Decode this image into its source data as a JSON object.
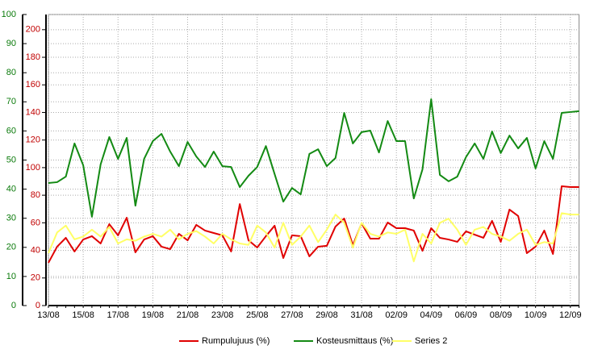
{
  "chart_data": {
    "type": "line",
    "categories": [
      "13/08",
      null,
      null,
      null,
      "15/08",
      null,
      null,
      null,
      "17/08",
      null,
      null,
      null,
      "19/08",
      null,
      null,
      null,
      "21/08",
      null,
      null,
      null,
      "23/08",
      null,
      null,
      null,
      "25/08",
      null,
      null,
      null,
      "27/08",
      null,
      null,
      null,
      "29/08",
      null,
      null,
      null,
      "31/08",
      null,
      null,
      null,
      "02/09",
      null,
      null,
      null,
      "04/09",
      null,
      null,
      null,
      "06/09",
      null,
      null,
      null,
      "08/09",
      null,
      null,
      null,
      "10/09",
      null,
      null,
      null,
      "12/09",
      null
    ],
    "series": [
      {
        "name": "Rumpulujuus (%)",
        "color": "#e00000",
        "axis": "y2",
        "values": [
          31,
          42.7,
          49.1,
          39.2,
          47.9,
          50.3,
          45,
          59,
          50.9,
          63.7,
          38.6,
          47.9,
          50.3,
          42.7,
          40.9,
          52,
          47.3,
          58.5,
          54.4,
          52.6,
          50.9,
          39.2,
          73.6,
          47.3,
          42.1,
          50.3,
          57.9,
          34.5,
          50.9,
          50.3,
          35.7,
          42.7,
          43.3,
          57.3,
          63.1,
          43.8,
          59.6,
          48.5,
          48.5,
          60.2,
          56.1,
          56.1,
          54.4,
          39.7,
          56.1,
          49.1,
          47.9,
          46.2,
          53.8,
          51.4,
          49.1,
          61.4,
          46.2,
          69.6,
          64.9,
          38,
          42.7,
          54.4,
          37.4,
          86.5,
          85.9,
          85.9
        ]
      },
      {
        "name": "Kosteusmittaus (%)",
        "color": "#138a13",
        "values": [
          42.1,
          42.4,
          44.3,
          55.7,
          48.2,
          30.5,
          48.5,
          57.9,
          50.4,
          57.6,
          34.3,
          50.4,
          56.5,
          59,
          52.9,
          47.9,
          56.2,
          51.2,
          47.6,
          52.9,
          47.9,
          47.6,
          40.7,
          44.6,
          47.6,
          54.8,
          45.2,
          35.7,
          40.4,
          38.2,
          52.1,
          53.7,
          47.9,
          50.7,
          66.2,
          55.7,
          59.6,
          60.1,
          52.6,
          63.4,
          56.5,
          56.5,
          36.8,
          46.8,
          70.9,
          44.9,
          42.7,
          44.3,
          51,
          55.7,
          50.4,
          59.8,
          52.4,
          58.4,
          54,
          57.6,
          47.1,
          56.5,
          50.4,
          66.2,
          66.5,
          66.8
        ]
      },
      {
        "name": "Series 2",
        "color": "#ffff66",
        "axis": "y2",
        "values": [
          38,
          53,
          58,
          48,
          50,
          55,
          50,
          57,
          45,
          48,
          47,
          50,
          52,
          50,
          55,
          48,
          52,
          54,
          50,
          45,
          52,
          48,
          45,
          44,
          58,
          53,
          42,
          60,
          44,
          50,
          58,
          46,
          55,
          66,
          60,
          42,
          60,
          52,
          50,
          53,
          52,
          55,
          32,
          52,
          45,
          60,
          63,
          55,
          44,
          55,
          57,
          52,
          50,
          47,
          52,
          55,
          44,
          46,
          45,
          67,
          66,
          66
        ]
      }
    ],
    "ylim": [
      0,
      100
    ],
    "yticks": [
      0,
      10,
      20,
      30,
      40,
      50,
      60,
      70,
      80,
      90,
      100
    ],
    "y2lim": [
      0,
      211
    ],
    "y2ticks": [
      0,
      20,
      40,
      60,
      80,
      100,
      120,
      140,
      160,
      180,
      200
    ],
    "grid": true,
    "legend": "bottom"
  }
}
